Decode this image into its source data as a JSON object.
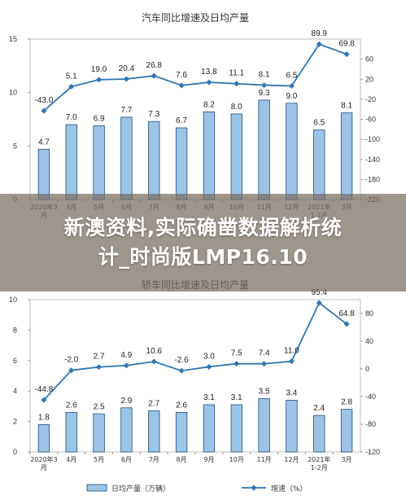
{
  "overlay": {
    "line1": "新澳资料,实际确凿数据解析统",
    "line2": "计_时尚版LMP16.10"
  },
  "chart_data": [
    {
      "type": "bar",
      "title": "汽车同比增速及日均产量",
      "categories": [
        "2020年3月",
        "4月",
        "5月",
        "6月",
        "7月",
        "8月",
        "9月",
        "10月",
        "11月",
        "12月",
        "2021年1-2月",
        "3月"
      ],
      "category_labels": [
        [
          "2020年3",
          "月"
        ],
        [
          "4月"
        ],
        [
          "5月"
        ],
        [
          "6月"
        ],
        [
          "7月"
        ],
        [
          "8月"
        ],
        [
          "9月"
        ],
        [
          "10月"
        ],
        [
          "11月"
        ],
        [
          "12月"
        ],
        [
          "2021年",
          "1-2月"
        ],
        [
          "3月"
        ]
      ],
      "series": [
        {
          "kind": "bar",
          "axis": "left",
          "values": [
            4.7,
            7.0,
            6.9,
            7.7,
            7.3,
            6.7,
            8.2,
            8.0,
            9.3,
            9.0,
            6.5,
            8.1
          ]
        },
        {
          "kind": "line",
          "axis": "right",
          "values": [
            -43.0,
            5.1,
            19.0,
            20.4,
            26.8,
            7.6,
            13.8,
            11.1,
            8.1,
            6.5,
            89.9,
            69.8
          ]
        }
      ],
      "left_axis": {
        "range": [
          0,
          15
        ],
        "ticks": [
          0,
          5,
          10,
          15
        ]
      },
      "right_axis": {
        "range": [
          -220,
          100
        ],
        "ticks": [
          -220,
          -180,
          -140,
          -100,
          -60,
          -20,
          20,
          60
        ]
      },
      "legend": null,
      "colors": {
        "bar": "#9dc3e6",
        "bar_edge": "#1f4e79",
        "line": "#2e75b6"
      }
    },
    {
      "type": "bar",
      "title": "轿车同比增速及日均产量",
      "categories": [
        "2020年3月",
        "4月",
        "5月",
        "6月",
        "7月",
        "8月",
        "9月",
        "10月",
        "11月",
        "12月",
        "2021年1-2月",
        "3月"
      ],
      "category_labels": [
        [
          "2020年3",
          "月"
        ],
        [
          "4月"
        ],
        [
          "5月"
        ],
        [
          "6月"
        ],
        [
          "7月"
        ],
        [
          "8月"
        ],
        [
          "9月"
        ],
        [
          "10月"
        ],
        [
          "11月"
        ],
        [
          "12月"
        ],
        [
          "2021年",
          "1-2月"
        ],
        [
          "3月"
        ]
      ],
      "series": [
        {
          "kind": "bar",
          "axis": "left",
          "name": "日均产量（万辆）",
          "values": [
            1.8,
            2.6,
            2.5,
            2.9,
            2.7,
            2.6,
            3.1,
            3.1,
            3.5,
            3.4,
            2.4,
            2.8
          ]
        },
        {
          "kind": "line",
          "axis": "right",
          "name": "增速（%）",
          "values": [
            -44.8,
            -2.0,
            2.7,
            4.9,
            10.6,
            -2.6,
            3.0,
            7.5,
            7.4,
            11.0,
            95.4,
            64.8
          ]
        }
      ],
      "left_axis": {
        "range": [
          0,
          10
        ],
        "ticks": [
          0,
          2,
          4,
          6,
          8,
          10
        ]
      },
      "right_axis": {
        "range": [
          -120,
          100
        ],
        "ticks": [
          -120,
          -80,
          -40,
          0,
          40,
          80
        ]
      },
      "legend": "bottom-center",
      "colors": {
        "bar": "#9dc3e6",
        "bar_edge": "#1f4e79",
        "line": "#2e75b6"
      }
    }
  ]
}
